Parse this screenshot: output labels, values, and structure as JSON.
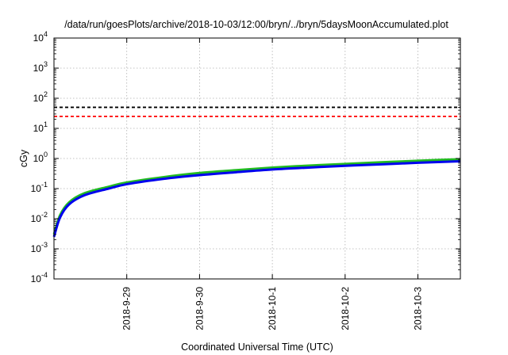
{
  "chart_data": {
    "type": "line",
    "title": "/data/run/goesPlots/archive/2018-10-03/12:00/bryn/../bryn/5daysMoonAccumulated.plot",
    "xlabel": "Coordinated Universal Time (UTC)",
    "ylabel": "cGy",
    "yscale": "log",
    "ylim": [
      0.0001,
      10000
    ],
    "xlim": [
      "2018-09-28 00:00",
      "2018-10-03 14:00"
    ],
    "grid": true,
    "x_ticks": [
      {
        "at": "2018-09-29 00:00",
        "label": "2018-9-29"
      },
      {
        "at": "2018-09-30 00:00",
        "label": "2018-9-30"
      },
      {
        "at": "2018-10-01 00:00",
        "label": "2018-10-1"
      },
      {
        "at": "2018-10-02 00:00",
        "label": "2018-10-2"
      },
      {
        "at": "2018-10-03 00:00",
        "label": "2018-10-3"
      }
    ],
    "y_ticks": [
      {
        "value": 0.0001,
        "base": "10",
        "exp": "-4"
      },
      {
        "value": 0.001,
        "base": "10",
        "exp": "-3"
      },
      {
        "value": 0.01,
        "base": "10",
        "exp": "-2"
      },
      {
        "value": 0.1,
        "base": "10",
        "exp": "-1"
      },
      {
        "value": 1,
        "base": "10",
        "exp": "0"
      },
      {
        "value": 10,
        "base": "10",
        "exp": "1"
      },
      {
        "value": 100,
        "base": "10",
        "exp": "2"
      },
      {
        "value": 1000,
        "base": "10",
        "exp": "3"
      },
      {
        "value": 10000,
        "base": "10",
        "exp": "4"
      }
    ],
    "reference_lines": [
      {
        "y": 50,
        "color": "#000000",
        "style": "dashed"
      },
      {
        "y": 25,
        "color": "#ff0000",
        "style": "dashed"
      }
    ],
    "series": [
      {
        "color": "#22bb22",
        "x": [
          "2018-09-28 00:00",
          "2018-09-28 02:00",
          "2018-09-28 05:00",
          "2018-09-28 10:00",
          "2018-09-28 18:00",
          "2018-09-29 00:00",
          "2018-09-29 12:00",
          "2018-09-30 00:00",
          "2018-09-30 12:00",
          "2018-10-01 00:00",
          "2018-10-01 12:00",
          "2018-10-02 00:00",
          "2018-10-02 12:00",
          "2018-10-03 00:00",
          "2018-10-03 14:00"
        ],
        "y": [
          0.003,
          0.013,
          0.035,
          0.07,
          0.115,
          0.16,
          0.24,
          0.33,
          0.41,
          0.5,
          0.58,
          0.66,
          0.75,
          0.84,
          0.95
        ]
      },
      {
        "color": "#0000ee",
        "x": [
          "2018-09-28 00:00",
          "2018-09-28 02:00",
          "2018-09-28 05:00",
          "2018-09-28 10:00",
          "2018-09-28 18:00",
          "2018-09-29 00:00",
          "2018-09-29 12:00",
          "2018-09-30 00:00",
          "2018-09-30 12:00",
          "2018-10-01 00:00",
          "2018-10-01 12:00",
          "2018-10-02 00:00",
          "2018-10-02 12:00",
          "2018-10-03 00:00",
          "2018-10-03 14:00"
        ],
        "y": [
          0.0025,
          0.011,
          0.03,
          0.06,
          0.1,
          0.14,
          0.21,
          0.28,
          0.35,
          0.43,
          0.5,
          0.57,
          0.64,
          0.72,
          0.81
        ]
      }
    ]
  }
}
